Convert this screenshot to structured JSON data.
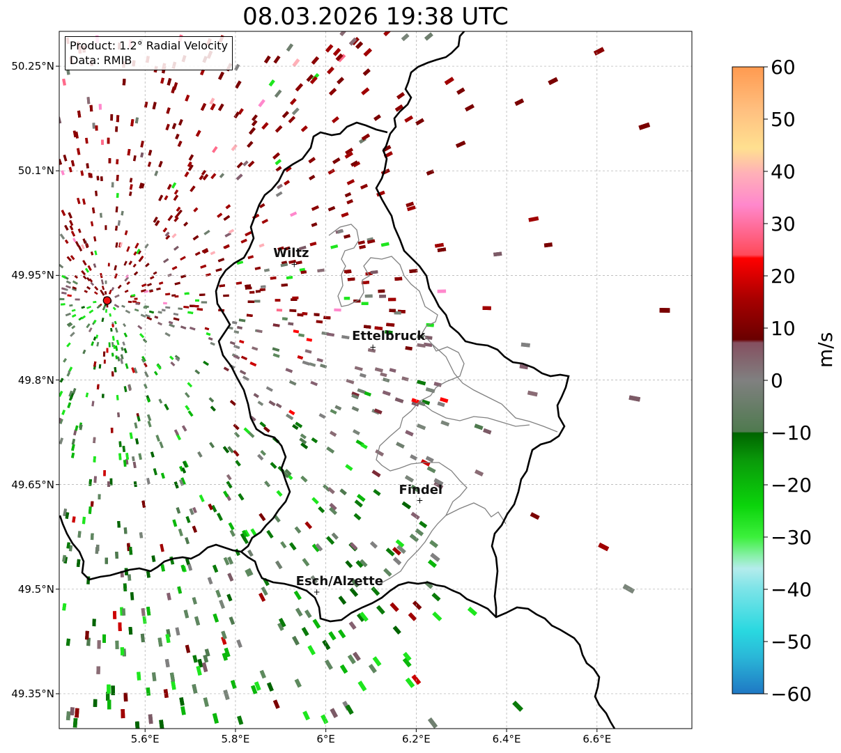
{
  "title": "08.03.2026 19:38 UTC",
  "info": {
    "product": "Product: 1.2° Radial Velocity",
    "source": "Data: RMIB"
  },
  "map": {
    "lon_range": [
      5.41,
      6.81
    ],
    "lat_range": [
      49.3,
      50.3
    ],
    "lat_ticks": [
      "50.25°N",
      "50.1°N",
      "49.95°N",
      "49.8°N",
      "49.65°N",
      "49.5°N",
      "49.35°N"
    ],
    "lon_ticks": [
      "5.6°E",
      "5.8°E",
      "6°E",
      "6.2°E",
      "6.4°E",
      "6.6°E"
    ],
    "radar_site": {
      "lon": 5.516,
      "lat": 49.914
    },
    "cities": [
      {
        "name": "Wiltz",
        "lon": 5.93,
        "lat": 49.966
      },
      {
        "name": "Ettelbruck",
        "lon": 6.104,
        "lat": 49.847
      },
      {
        "name": "Findel",
        "lon": 6.208,
        "lat": 49.627
      },
      {
        "name": "Esch/Alzette",
        "lon": 5.98,
        "lat": 49.496
      }
    ],
    "grid": true
  },
  "colorbar": {
    "label": "m/s",
    "range": [
      -60,
      60
    ],
    "tick_labels": [
      "60",
      "50",
      "40",
      "30",
      "20",
      "10",
      "0",
      "−10",
      "−20",
      "−30",
      "−40",
      "−50",
      "−60"
    ],
    "tick_values": [
      60,
      50,
      40,
      30,
      20,
      10,
      0,
      -10,
      -20,
      -30,
      -40,
      -50,
      -60
    ],
    "colors": {
      "neg_60": "#1f78c4",
      "neg_50": "#29d8e0",
      "neg_40": "#b4ecec",
      "neg_30": "#1ee61e",
      "neg_20": "#0bb70b",
      "neg_10": "#006400",
      "zero": "#808080",
      "pos_10": "#7a0000",
      "pos_20": "#cc0000",
      "pos_30": "#ff4a5a",
      "pos_40": "#ff88cc",
      "pos_50": "#ffd090",
      "pos_60": "#ff9a50"
    }
  }
}
